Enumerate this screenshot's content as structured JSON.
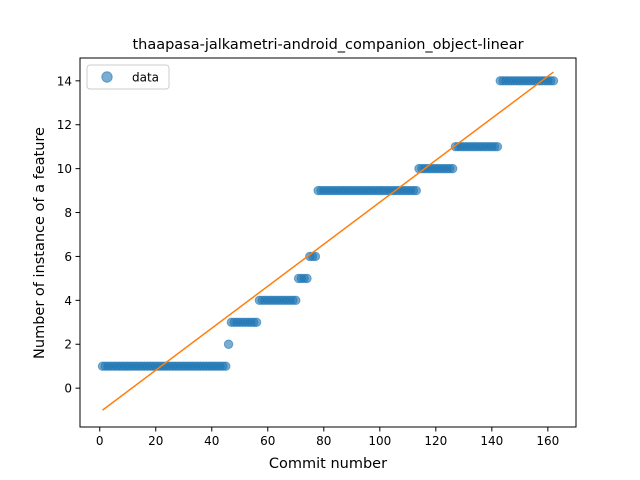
{
  "chart_data": {
    "type": "scatter",
    "title": "thaapasa-jalkametri-android_companion_object-linear",
    "xlabel": "Commit number",
    "ylabel": "Number of instance of a feature",
    "xlim": [
      -7.05,
      170.05
    ],
    "ylim": [
      -1.77,
      15.04
    ],
    "x_ticks": [
      0,
      20,
      40,
      60,
      80,
      100,
      120,
      140,
      160
    ],
    "y_ticks": [
      0,
      2,
      4,
      6,
      8,
      10,
      12,
      14
    ],
    "grid": false,
    "legend": {
      "placement": "top-left",
      "entries": [
        "data"
      ]
    },
    "series": [
      {
        "name": "data",
        "kind": "scatter",
        "color": "#1f77b4",
        "segments": [
          {
            "x_start": 1,
            "x_end": 45,
            "y": 1
          },
          {
            "x_start": 46,
            "x_end": 46,
            "y": 2
          },
          {
            "x_start": 47,
            "x_end": 56,
            "y": 3
          },
          {
            "x_start": 57,
            "x_end": 70,
            "y": 4
          },
          {
            "x_start": 71,
            "x_end": 74,
            "y": 5
          },
          {
            "x_start": 75,
            "x_end": 77,
            "y": 6
          },
          {
            "x_start": 78,
            "x_end": 113,
            "y": 9
          },
          {
            "x_start": 114,
            "x_end": 126,
            "y": 10
          },
          {
            "x_start": 127,
            "x_end": 142,
            "y": 11
          },
          {
            "x_start": 143,
            "x_end": 162,
            "y": 14
          }
        ]
      },
      {
        "kind": "line",
        "color": "#ff7f0e",
        "points": [
          [
            1,
            -1.0
          ],
          [
            162,
            14.4
          ]
        ]
      }
    ]
  }
}
